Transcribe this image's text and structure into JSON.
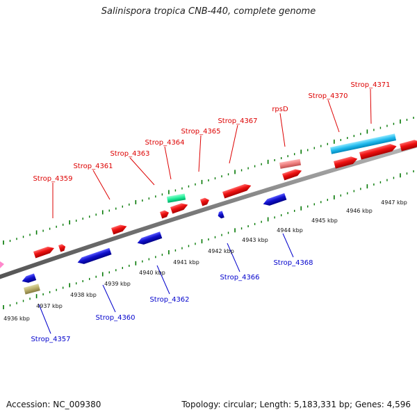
{
  "title": "Salinispora tropica CNB-440, complete genome",
  "footer": {
    "accession": "Accession: NC_009380",
    "summary": "Topology: circular; Length: 5,183,331 bp; Genes: 4,596"
  },
  "colors": {
    "forward_label": "#dd0000",
    "reverse_label": "#0000cc",
    "backbone": "#888888",
    "tick": "#007700",
    "red_gene": "#ee1111",
    "blue_gene": "#1111cc"
  },
  "scale_labels": [
    "4936 kbp",
    "4937 kbp",
    "4938 kbp",
    "4939 kbp",
    "4940 kbp",
    "4941 kbp",
    "4942 kbp",
    "4943 kbp",
    "4944 kbp",
    "4945 kbp",
    "4946 kbp",
    "4947 kbp"
  ],
  "forward_labels": [
    "Strop_4359",
    "Strop_4361",
    "Strop_4363",
    "Strop_4364",
    "Strop_4365",
    "Strop_4367",
    "rpsD",
    "Strop_4370",
    "Strop_4371"
  ],
  "reverse_labels": [
    "Strop_4357",
    "Strop_4360",
    "Strop_4362",
    "Strop_4366",
    "Strop_4368"
  ]
}
